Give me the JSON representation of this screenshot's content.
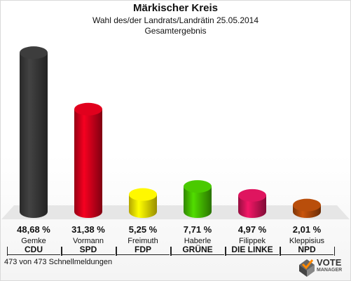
{
  "chart_data": {
    "type": "bar",
    "title": "Märkischer Kreis",
    "subtitle": "Wahl des/der Landrats/Landrätin 25.05.2014",
    "subtitle2": "Gesamtergebnis",
    "categories": [
      "CDU",
      "SPD",
      "FDP",
      "GRÜNE",
      "DIE LINKE",
      "NPD"
    ],
    "candidates": [
      "Gemke",
      "Vormann",
      "Freimuth",
      "Haberle",
      "Filippek",
      "Kleppisius"
    ],
    "values": [
      48.68,
      31.38,
      5.25,
      7.71,
      4.97,
      2.01
    ],
    "labels": [
      "48,68 %",
      "31,38 %",
      "5,25 %",
      "7,71 %",
      "4,97 %",
      "2,01 %"
    ],
    "colors": [
      "#3a3a3a",
      "#d6001c",
      "#ffec00",
      "#46c000",
      "#d4145a",
      "#b04a0a"
    ],
    "ylim": [
      0,
      50
    ],
    "grid": false
  },
  "footer": "473 von 473 Schnellmeldungen",
  "logo": {
    "word": "VOTE",
    "sub": "MANAGER",
    "icon": "checkmark-ballot-icon"
  }
}
